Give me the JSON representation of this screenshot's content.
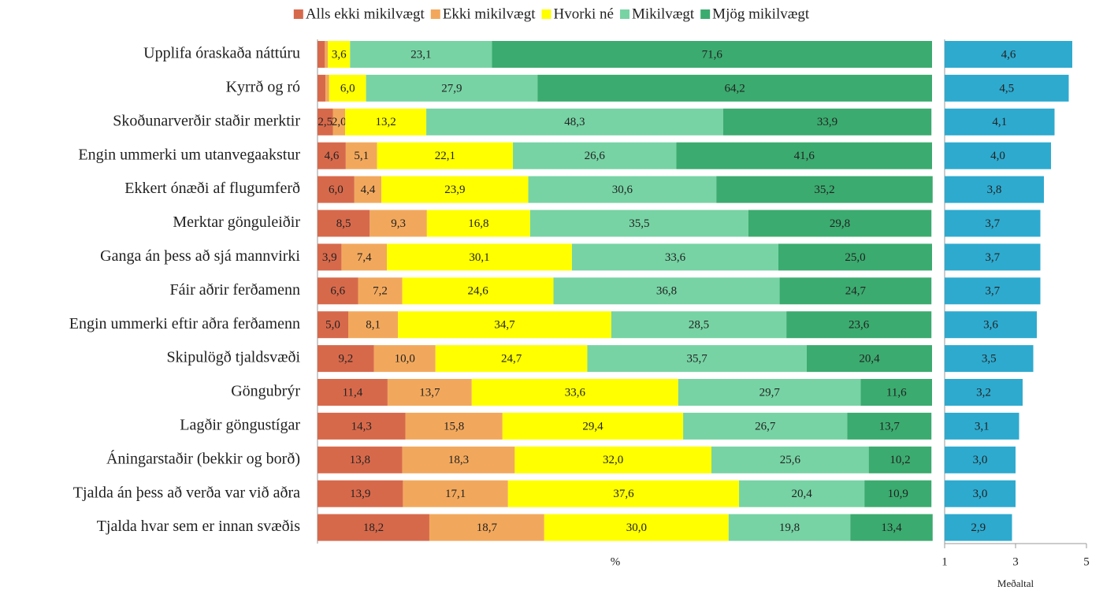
{
  "chart_data": [
    {
      "type": "stacked-bar",
      "orientation": "horizontal",
      "xlabel": "%",
      "xlim": [
        0,
        100
      ],
      "legend": "top",
      "categories": [
        "Upplifa óraskaða náttúru",
        "Kyrrð og ró",
        "Skoðunarverðir staðir merktir",
        "Engin ummerki um utanvegaakstur",
        "Ekkert ónæði af flugumferð",
        "Merktar gönguleiðir",
        "Ganga án þess að sjá mannvirki",
        "Fáir aðrir ferðamenn",
        "Engin ummerki eftir aðra ferðamenn",
        "Skipulögð tjaldsvæði",
        "Göngubrýr",
        "Lagðir göngustígar",
        "Áningarstaðir (bekkir og borð)",
        "Tjalda án þess að verða var við aðra",
        "Tjalda hvar sem er innan svæðis"
      ],
      "series": [
        {
          "name": "Alls ekki mikilvægt",
          "color": "#d7694b",
          "values": [
            1.2,
            1.3,
            2.5,
            4.6,
            6.0,
            8.5,
            3.9,
            6.6,
            5.0,
            9.2,
            11.4,
            14.3,
            13.8,
            13.9,
            18.2
          ],
          "value_labels": [
            null,
            null,
            "2,5",
            "4,6",
            "6,0",
            "8,5",
            "3,9",
            "6,6",
            "5,0",
            "9,2",
            "11,4",
            "14,3",
            "13,8",
            "13,9",
            "18,2"
          ]
        },
        {
          "name": "Ekki mikilvægt",
          "color": "#f2a85c",
          "values": [
            0.5,
            0.6,
            2.0,
            5.1,
            4.4,
            9.3,
            7.4,
            7.2,
            8.1,
            10.0,
            13.7,
            15.8,
            18.3,
            17.1,
            18.7
          ],
          "value_labels": [
            null,
            null,
            "2,0",
            "5,1",
            "4,4",
            "9,3",
            "7,4",
            "7,2",
            "8,1",
            "10,0",
            "13,7",
            "15,8",
            "18,3",
            "17,1",
            "18,7"
          ]
        },
        {
          "name": "Hvorki né",
          "color": "#ffff00",
          "values": [
            3.6,
            6.0,
            13.2,
            22.1,
            23.9,
            16.8,
            30.1,
            24.6,
            34.7,
            24.7,
            33.6,
            29.4,
            32.0,
            37.6,
            30.0
          ],
          "value_labels": [
            "3,6",
            "6,0",
            "13,2",
            "22,1",
            "23,9",
            "16,8",
            "30,1",
            "24,6",
            "34,7",
            "24,7",
            "33,6",
            "29,4",
            "32,0",
            "37,6",
            "30,0"
          ]
        },
        {
          "name": "Mikilvægt",
          "color": "#77d3a4",
          "values": [
            23.1,
            27.9,
            48.3,
            26.6,
            30.6,
            35.5,
            33.6,
            36.8,
            28.5,
            35.7,
            29.7,
            26.7,
            25.6,
            20.4,
            19.8
          ],
          "value_labels": [
            "23,1",
            "27,9",
            "48,3",
            "26,6",
            "30,6",
            "35,5",
            "33,6",
            "36,8",
            "28,5",
            "35,7",
            "29,7",
            "26,7",
            "25,6",
            "20,4",
            "19,8"
          ]
        },
        {
          "name": "Mjög mikilvægt",
          "color": "#3bab6f",
          "values": [
            71.6,
            64.2,
            33.9,
            41.6,
            35.2,
            29.8,
            25.0,
            24.7,
            23.6,
            20.4,
            11.6,
            13.7,
            10.2,
            10.9,
            13.4
          ],
          "value_labels": [
            "71,6",
            "64,2",
            "33,9",
            "41,6",
            "35,2",
            "29,8",
            "25,0",
            "24,7",
            "23,6",
            "20,4",
            "11,6",
            "13,7",
            "10,2",
            "10,9",
            "13,4"
          ]
        }
      ]
    },
    {
      "type": "bar",
      "orientation": "horizontal",
      "xlabel": "Meðaltal",
      "xlim": [
        1,
        5
      ],
      "xticks": [
        1,
        3,
        5
      ],
      "color": "#2eaacf",
      "values": [
        4.6,
        4.5,
        4.1,
        4.0,
        3.8,
        3.7,
        3.7,
        3.7,
        3.6,
        3.5,
        3.2,
        3.1,
        3.0,
        3.0,
        2.9
      ],
      "value_labels": [
        "4,6",
        "4,5",
        "4,1",
        "4,0",
        "3,8",
        "3,7",
        "3,7",
        "3,7",
        "3,6",
        "3,5",
        "3,2",
        "3,1",
        "3,0",
        "3,0",
        "2,9"
      ]
    }
  ]
}
